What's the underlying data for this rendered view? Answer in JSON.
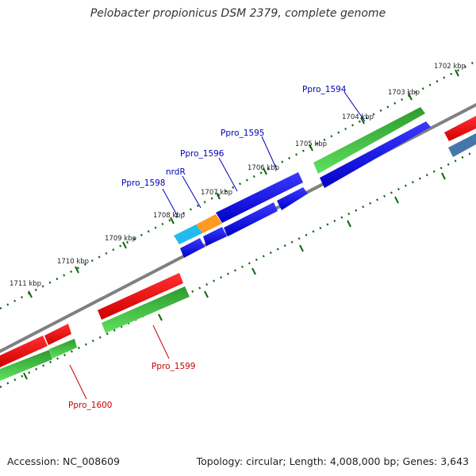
{
  "title": "Pelobacter propionicus DSM 2379, complete genome",
  "accession_label": "Accession: NC_008609",
  "summary": "Topology: circular; Length: 4,008,000 bp; Genes: 3,643",
  "kbp_ticks": [
    "1702 kbp",
    "1703 kbp",
    "1704 kbp",
    "1705 kbp",
    "1706 kbp",
    "1707 kbp",
    "1708 kbp",
    "1709 kbp",
    "1710 kbp",
    "1711 kbp"
  ],
  "gene_labels_upper": [
    "Ppro_1594",
    "Ppro_1595",
    "Ppro_1596",
    "nrdR",
    "Ppro_1598"
  ],
  "gene_labels_lower": [
    "Ppro_1599",
    "Ppro_1600"
  ],
  "colors": {
    "forward_gene": "#0000ee",
    "forward_cds_green": "#33bb33",
    "reverse_gene": "#ee0000",
    "highlight_cyan": "#22bbee",
    "highlight_orange": "#ff9922",
    "steel_blue": "#4477aa",
    "backbone": "#777777",
    "tick_green": "#116611",
    "label_blue": "#0000bb",
    "label_red": "#cc0000"
  }
}
